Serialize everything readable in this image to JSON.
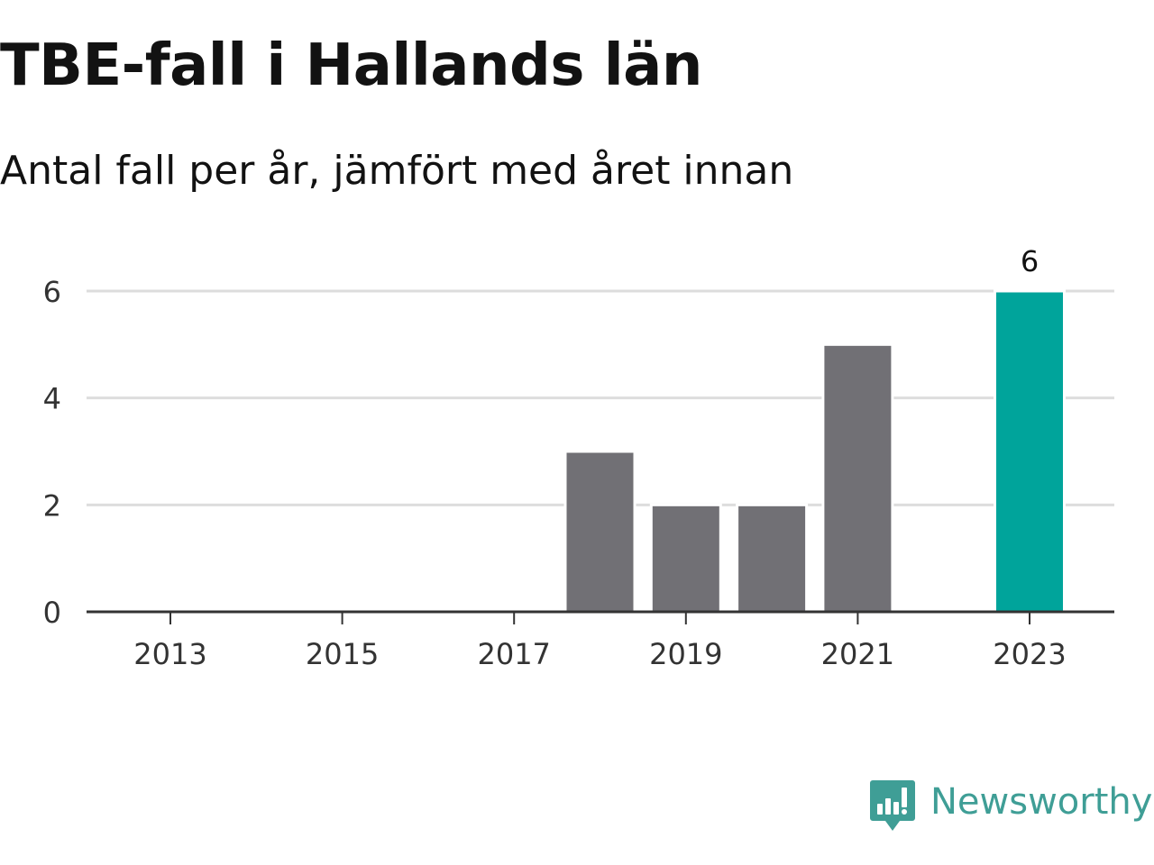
{
  "header": {
    "title": "TBE-fall i Hallands län",
    "subtitle": "Antal fall per år, jämfört med året innan"
  },
  "logo": {
    "text": "Newsworthy",
    "icon": "newsworthy-bar-chart-icon",
    "color": "#3f9e96"
  },
  "colors": {
    "bar_default": "#717075",
    "bar_highlight": "#00a49b",
    "grid": "#dddddd",
    "axis": "#333333"
  },
  "chart_data": {
    "type": "bar",
    "categories": [
      "2013",
      "2014",
      "2015",
      "2016",
      "2017",
      "2018",
      "2019",
      "2020",
      "2021",
      "2022",
      "2023"
    ],
    "values": [
      0,
      0,
      0,
      0,
      0,
      3,
      2,
      2,
      5,
      0,
      6
    ],
    "highlight_index": 10,
    "x_tick_labels": [
      "2013",
      "2015",
      "2017",
      "2019",
      "2021",
      "2023"
    ],
    "y_ticks": [
      "0",
      "2",
      "4",
      "6"
    ],
    "ylim": [
      0,
      6
    ],
    "grid": true,
    "data_labels": [
      {
        "category": "2023",
        "text": "6"
      }
    ],
    "title": "TBE-fall i Hallands län",
    "subtitle": "Antal fall per år, jämfört med året innan",
    "xlabel": "",
    "ylabel": ""
  }
}
